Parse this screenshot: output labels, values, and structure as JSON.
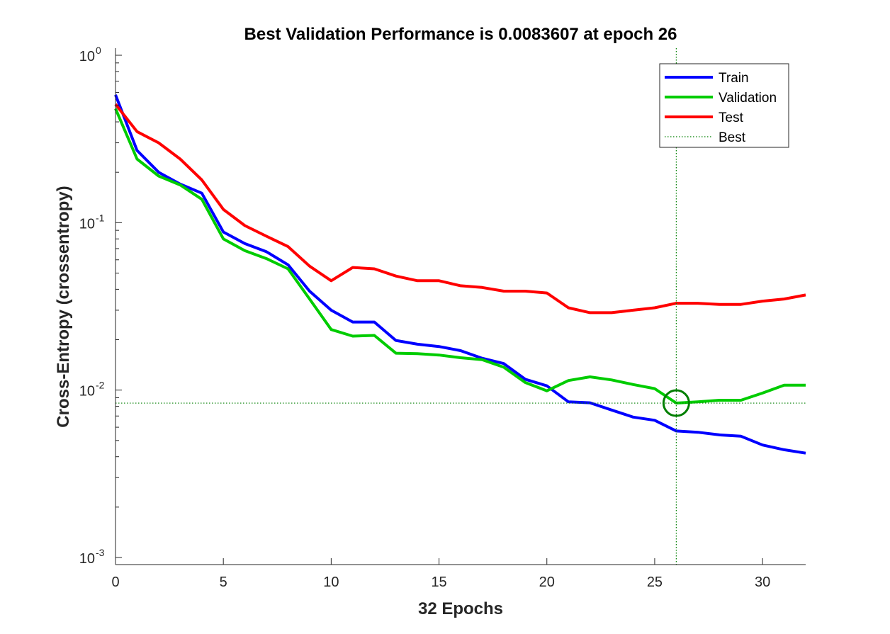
{
  "chart_data": {
    "type": "line",
    "title": "Best Validation Performance is 0.0083607 at epoch 26",
    "xlabel": "32 Epochs",
    "ylabel": "Cross-Entropy  (crossentropy)",
    "x_scale": "linear",
    "y_scale": "log",
    "xlim": [
      0,
      32
    ],
    "ylim": [
      0.001,
      1
    ],
    "x_ticks": [
      0,
      5,
      10,
      15,
      20,
      25,
      30
    ],
    "y_ticks": [
      {
        "value": 0.001,
        "base": "10",
        "exp": "-3"
      },
      {
        "value": 0.01,
        "base": "10",
        "exp": "-2"
      },
      {
        "value": 0.1,
        "base": "10",
        "exp": "-1"
      },
      {
        "value": 1,
        "base": "10",
        "exp": "0"
      }
    ],
    "grid": false,
    "legend_position": "top-right",
    "x": [
      0,
      1,
      2,
      3,
      4,
      5,
      6,
      7,
      8,
      9,
      10,
      11,
      12,
      13,
      14,
      15,
      16,
      17,
      18,
      19,
      20,
      21,
      22,
      23,
      24,
      25,
      26,
      27,
      28,
      29,
      30,
      31,
      32
    ],
    "series": [
      {
        "name": "Train",
        "color": "#0000ff",
        "values": [
          0.58,
          0.27,
          0.2,
          0.17,
          0.15,
          0.088,
          0.075,
          0.067,
          0.056,
          0.039,
          0.03,
          0.0255,
          0.0255,
          0.0198,
          0.0188,
          0.0182,
          0.0172,
          0.0155,
          0.0144,
          0.0116,
          0.0106,
          0.0085,
          0.0084,
          0.0076,
          0.0069,
          0.0066,
          0.0057,
          0.0056,
          0.0054,
          0.0053,
          0.0047,
          0.0044,
          0.0042
        ]
      },
      {
        "name": "Validation",
        "color": "#00cc00",
        "values": [
          0.48,
          0.24,
          0.19,
          0.168,
          0.138,
          0.08,
          0.068,
          0.061,
          0.053,
          0.035,
          0.023,
          0.021,
          0.0212,
          0.0166,
          0.0165,
          0.0162,
          0.0156,
          0.0152,
          0.0137,
          0.0111,
          0.0099,
          0.0114,
          0.012,
          0.0115,
          0.0108,
          0.0102,
          0.0083607,
          0.0085,
          0.0087,
          0.0087,
          0.0096,
          0.0107,
          0.0107
        ]
      },
      {
        "name": "Test",
        "color": "#ff0000",
        "values": [
          0.51,
          0.35,
          0.3,
          0.24,
          0.18,
          0.12,
          0.096,
          0.083,
          0.072,
          0.055,
          0.045,
          0.054,
          0.053,
          0.048,
          0.045,
          0.045,
          0.042,
          0.041,
          0.039,
          0.039,
          0.038,
          0.031,
          0.029,
          0.029,
          0.03,
          0.031,
          0.033,
          0.033,
          0.0325,
          0.0325,
          0.034,
          0.035,
          0.037
        ]
      }
    ],
    "best": {
      "name": "Best",
      "color": "#007f00",
      "epoch": 26,
      "value": 0.0083607
    }
  }
}
